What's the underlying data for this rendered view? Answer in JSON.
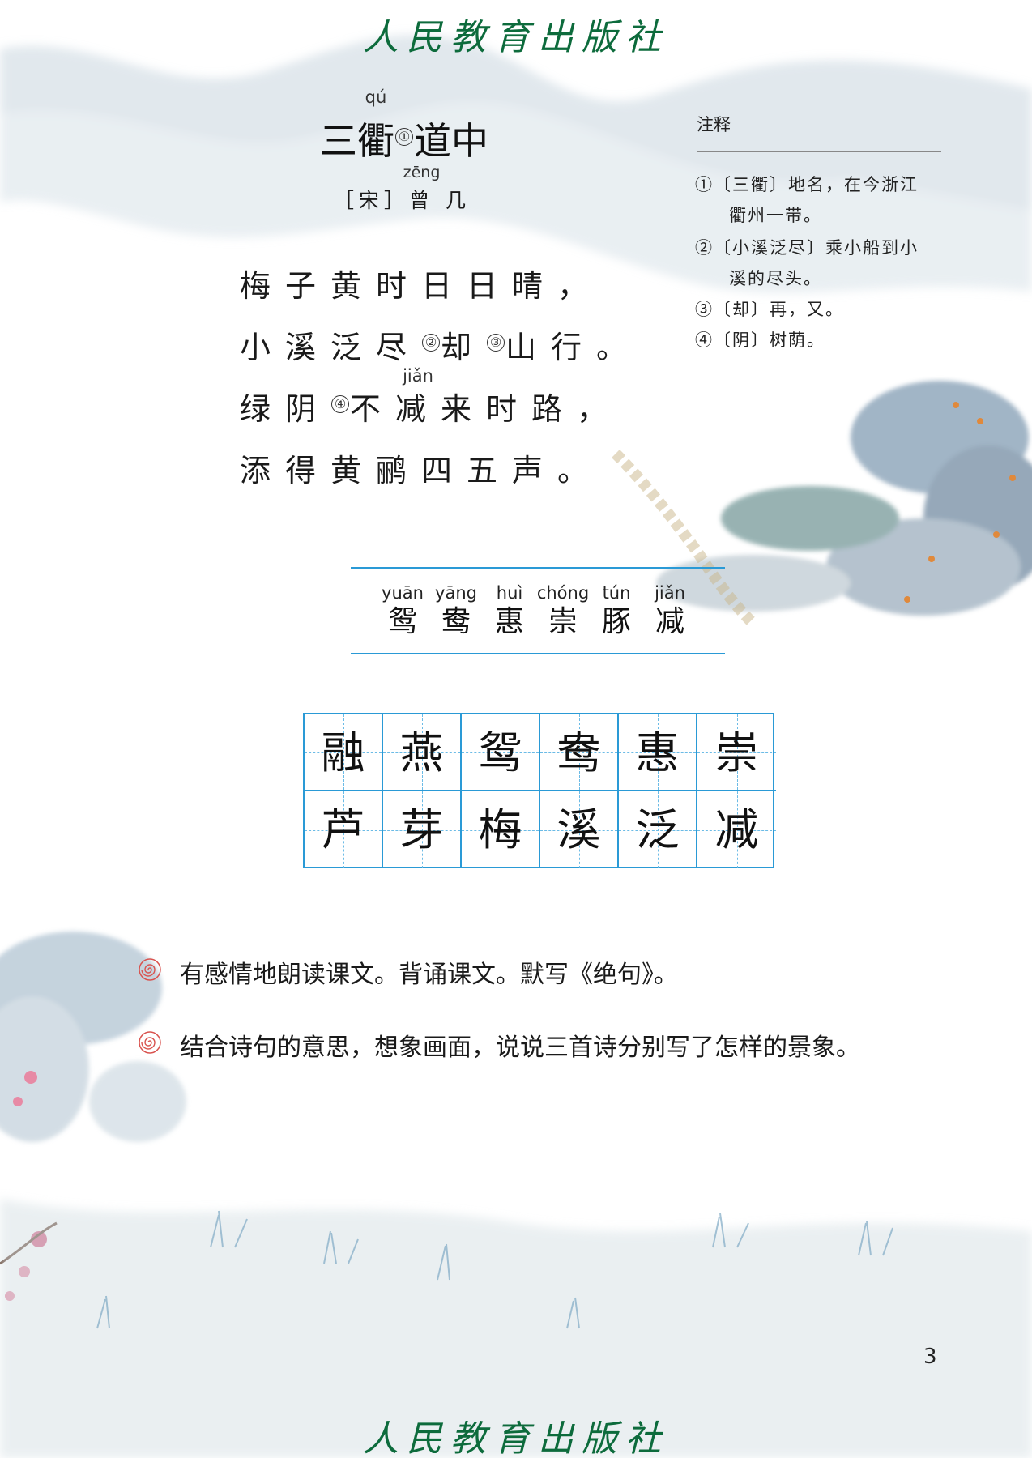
{
  "publisher": "人民教育出版社",
  "poem": {
    "title_before": "三",
    "title_ruby_char": "衢",
    "title_ruby_pinyin": "qú",
    "title_note": "①",
    "title_after": "道中",
    "author_dynasty": "［宋］",
    "author_char1": "曾",
    "author_char1_pinyin": "zēng",
    "author_char2": "几",
    "line1": "梅子黄时日日晴，",
    "line2_a": "小溪泛尽",
    "line2_note_a": "②",
    "line2_b": "却",
    "line2_note_b": "③",
    "line2_c": "山行。",
    "line3_a": "绿阴",
    "line3_note": "④",
    "line3_b": "不",
    "line3_ruby_char": "减",
    "line3_ruby_pinyin": "jiǎn",
    "line3_c": "来时路，",
    "line4": "添得黄鹂四五声。"
  },
  "notes": {
    "heading": "注释",
    "n1_line1": "①〔三衢〕地名，在今浙江",
    "n1_line2": "衢州一带。",
    "n2_line1": "②〔小溪泛尽〕乘小船到小",
    "n2_line2": "溪的尽头。",
    "n3": "③〔却〕再，又。",
    "n4": "④〔阴〕树荫。"
  },
  "vocab": [
    {
      "pinyin": "yuān",
      "char": "鸳"
    },
    {
      "pinyin": "yāng",
      "char": "鸯"
    },
    {
      "pinyin": "huì",
      "char": "惠"
    },
    {
      "pinyin": "chóng",
      "char": "崇"
    },
    {
      "pinyin": "tún",
      "char": "豚"
    },
    {
      "pinyin": "jiǎn",
      "char": "减"
    }
  ],
  "grid": {
    "row1": [
      "融",
      "燕",
      "鸳",
      "鸯",
      "惠",
      "崇"
    ],
    "row2": [
      "芦",
      "芽",
      "梅",
      "溪",
      "泛",
      "减"
    ]
  },
  "exercises": [
    "有感情地朗读课文。背诵课文。默写《绝句》。",
    "结合诗句的意思，想象画面，说说三首诗分别写了怎样的景象。"
  ],
  "page_number": "3",
  "colors": {
    "publisher_green": "#0d6b3c",
    "grid_blue": "#2a9ad6",
    "icon_red": "#d9534f"
  }
}
